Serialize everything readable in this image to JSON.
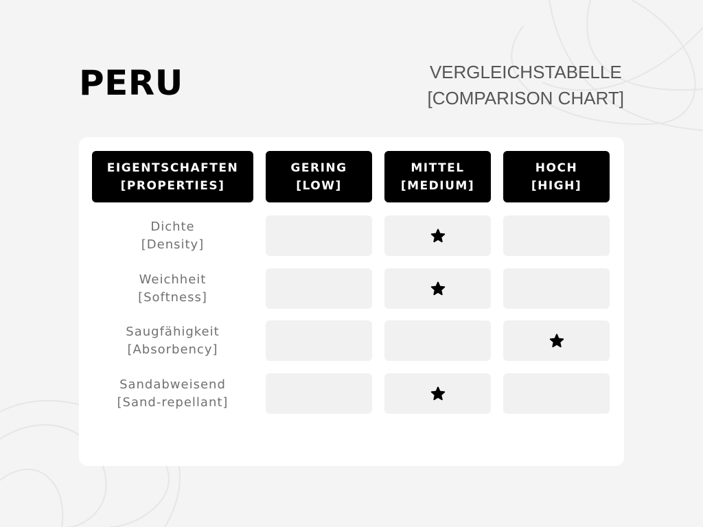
{
  "title": "PERU",
  "subtitle": {
    "line1": "VERGLEICHSTABELLE",
    "line2": "[COMPARISON CHART]"
  },
  "table": {
    "headers": [
      {
        "line1": "EIGENTSCHAFTEN",
        "line2": "[PROPERTIES]"
      },
      {
        "line1": "GERING",
        "line2": "[LOW]"
      },
      {
        "line1": "MITTEL",
        "line2": "[MEDIUM]"
      },
      {
        "line1": "HOCH",
        "line2": "[HIGH]"
      }
    ],
    "rows": [
      {
        "line1": "Dichte",
        "line2": "[Density]",
        "rating": "MITTEL [MEDIUM]"
      },
      {
        "line1": "Weichheit",
        "line2": "[Softness]",
        "rating": "MITTEL [MEDIUM]"
      },
      {
        "line1": "Saugfähigkeit",
        "line2": "[Absorbency]",
        "rating": "HOCH [HIGH]"
      },
      {
        "line1": "Sandabweisend",
        "line2": "[Sand-repellant]",
        "rating": "MITTEL [MEDIUM]"
      }
    ],
    "marker_icon": "star-icon",
    "colors": {
      "header_bg": "#000000",
      "cell_bg": "#f1f1f1",
      "card_bg": "#ffffff",
      "page_bg": "#f4f4f4"
    }
  }
}
